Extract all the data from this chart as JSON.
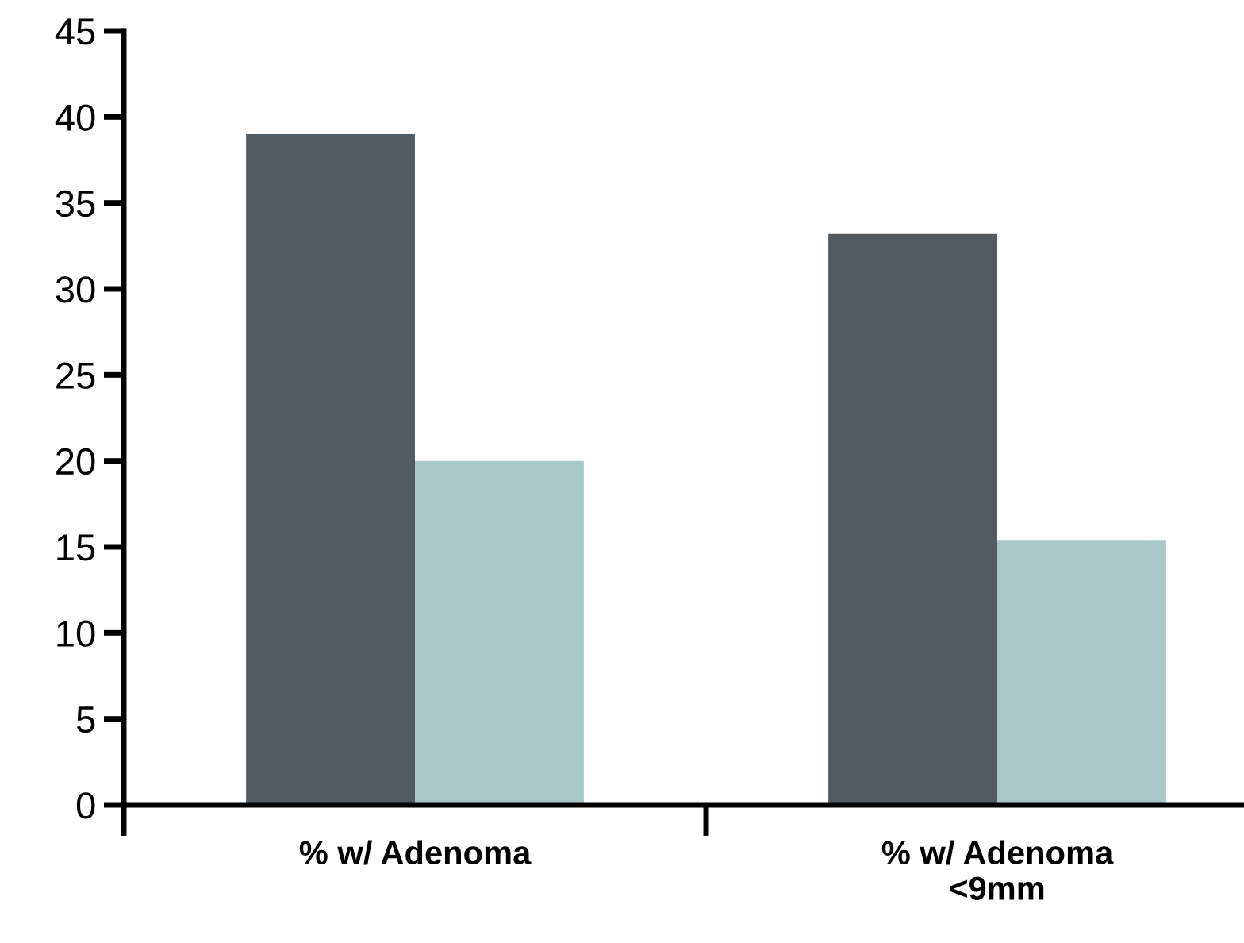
{
  "chart_data": {
    "type": "bar",
    "categories": [
      "% w/ Adenoma",
      "% w/ Adenoma\n<9mm"
    ],
    "series": [
      {
        "color": "#515b61",
        "values": [
          39.0,
          33.2
        ]
      },
      {
        "color": "#a9c8c7",
        "values": [
          20.0,
          15.4
        ]
      }
    ],
    "ylim": [
      0,
      45
    ],
    "yticks": [
      0,
      5,
      10,
      15,
      20,
      25,
      30,
      35,
      40,
      45
    ],
    "grid": false
  }
}
